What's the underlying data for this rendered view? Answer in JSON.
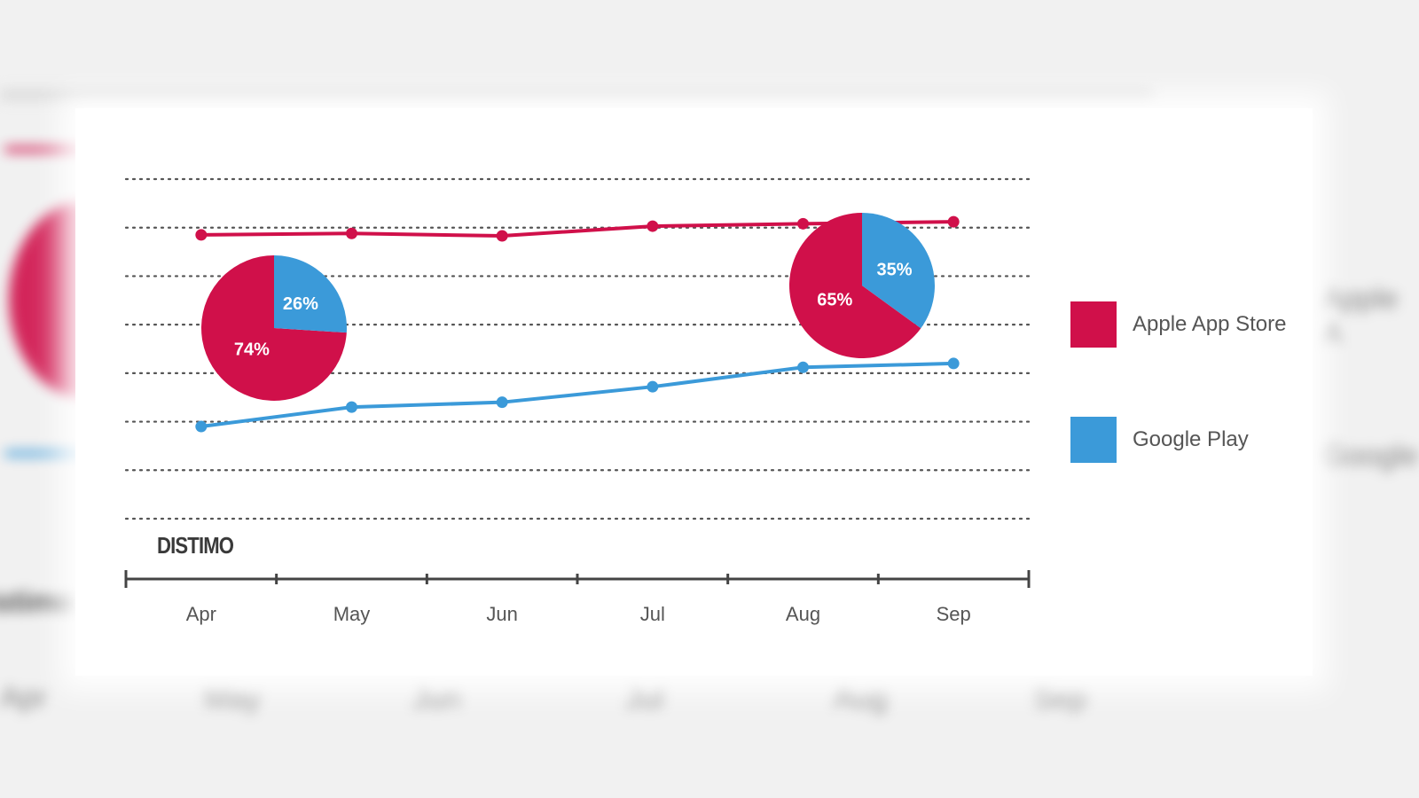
{
  "brand": "DISTIMO",
  "colors": {
    "apple": "#d0104a",
    "google": "#3b9ad9",
    "grid": "#555555",
    "axis": "#444444",
    "tick_text": "#555555"
  },
  "background_labels": {
    "months": [
      "Apr",
      "May",
      "Jun",
      "Jul",
      "Aug",
      "Sep"
    ],
    "side_left": "Distimo",
    "side_right_top": "Apple A",
    "side_right_bottom": "Google"
  },
  "chart_data": {
    "type": "line",
    "categories": [
      "Apr",
      "May",
      "Jun",
      "Jul",
      "Aug",
      "Sep"
    ],
    "ylim": [
      0,
      7
    ],
    "grid": "horizontal dotted",
    "legend_position": "right",
    "series": [
      {
        "name": "Apple App Store",
        "color": "#d0104a",
        "values": [
          5.85,
          5.88,
          5.83,
          6.03,
          6.08,
          6.12
        ]
      },
      {
        "name": "Google Play",
        "color": "#3b9ad9",
        "values": [
          1.9,
          2.3,
          2.4,
          2.72,
          3.12,
          3.2
        ]
      }
    ],
    "pies": [
      {
        "position": "under-Apr",
        "slices": [
          {
            "name": "Apple App Store",
            "value": 74,
            "label": "74%"
          },
          {
            "name": "Google Play",
            "value": 26,
            "label": "26%"
          }
        ]
      },
      {
        "position": "under-Aug",
        "slices": [
          {
            "name": "Apple App Store",
            "value": 65,
            "label": "65%"
          },
          {
            "name": "Google Play",
            "value": 35,
            "label": "35%"
          }
        ]
      }
    ]
  }
}
